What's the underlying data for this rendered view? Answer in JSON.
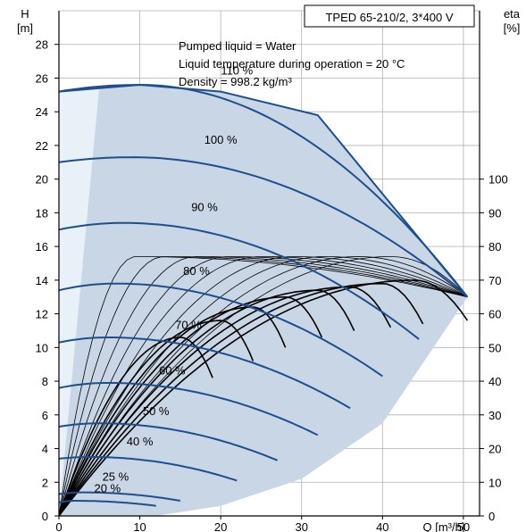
{
  "chart_data": {
    "type": "line",
    "title": "TPED 65-210/2, 3*400 V",
    "notes": [
      "Pumped liquid = Water",
      "Liquid temperature during operation = 20 °C",
      "Density = 998.2 kg/m³"
    ],
    "xlabel": "Q [m³/h]",
    "ylabel": "H",
    "ylabel_unit": "[m]",
    "y2label": "eta",
    "y2label_unit": "[%]",
    "xlim": [
      0,
      52
    ],
    "ylim": [
      0,
      30
    ],
    "y2lim": [
      0,
      150
    ],
    "x_ticks": [
      "0",
      "10",
      "20",
      "30",
      "40",
      "50"
    ],
    "y_ticks": [
      "0",
      "2",
      "4",
      "6",
      "8",
      "10",
      "12",
      "14",
      "16",
      "18",
      "20",
      "22",
      "24",
      "26",
      "28"
    ],
    "y2_ticks": [
      "0",
      "10",
      "20",
      "30",
      "40",
      "50",
      "60",
      "70",
      "80",
      "90",
      "100"
    ],
    "grid": true,
    "colors": {
      "head_curve": "#1f4e8c",
      "operating_area": "#c9d6e6",
      "light_area": "#e8f0f8",
      "efficiency": "#000000"
    },
    "speed_curves": [
      {
        "name": "110 %",
        "h0": 25.2,
        "h_peak": 25.6,
        "q_peak": 10,
        "q_end": 50.5,
        "h_end": 13
      },
      {
        "name": "100 %",
        "h0": 21.0,
        "h_peak": 21.3,
        "q_peak": 9,
        "q_end": 50.5,
        "h_end": 13
      },
      {
        "name": "90 %",
        "h0": 17.0,
        "h_peak": 17.4,
        "q_peak": 8,
        "q_end": 44.5,
        "h_end": 10.5
      },
      {
        "name": "80 %",
        "h0": 13.4,
        "h_peak": 13.8,
        "q_peak": 7,
        "q_end": 40,
        "h_end": 8.3
      },
      {
        "name": "70 %",
        "h0": 10.3,
        "h_peak": 10.6,
        "q_peak": 6,
        "q_end": 36,
        "h_end": 6.4
      },
      {
        "name": "60 %",
        "h0": 7.6,
        "h_peak": 7.9,
        "q_peak": 6,
        "q_end": 32,
        "h_end": 4.8
      },
      {
        "name": "50 %",
        "h0": 5.3,
        "h_peak": 5.5,
        "q_peak": 5,
        "q_end": 27,
        "h_end": 3.3
      },
      {
        "name": "40 %",
        "h0": 3.4,
        "h_peak": 3.5,
        "q_peak": 4,
        "q_end": 22,
        "h_end": 2.1
      },
      {
        "name": "25 %",
        "h0": 1.3,
        "h_peak": 1.4,
        "q_peak": 3,
        "q_end": 15,
        "h_end": 0.9
      },
      {
        "name": "20 %",
        "h0": 0.8,
        "h_peak": 0.9,
        "q_peak": 2,
        "q_end": 12,
        "h_end": 0.6
      }
    ],
    "max_curve": [
      [
        0,
        25.2
      ],
      [
        10,
        25.6
      ],
      [
        20,
        25.2
      ],
      [
        32,
        23.8
      ],
      [
        50.5,
        13
      ]
    ],
    "operating_area_boundary": [
      [
        5,
        25.5
      ],
      [
        10,
        25.6
      ],
      [
        20,
        25.2
      ],
      [
        32,
        23.8
      ],
      [
        50.5,
        13
      ],
      [
        40,
        5.5
      ],
      [
        30,
        2.2
      ],
      [
        20,
        0.6
      ],
      [
        12,
        0
      ],
      [
        0,
        0
      ]
    ],
    "efficiency_curves": [
      {
        "eta_peak": 77,
        "q_peak": 9.5,
        "q_end": 50.5
      },
      {
        "eta_peak": 77,
        "q_peak": 13,
        "q_end": 50.5
      },
      {
        "eta_peak": 77,
        "q_peak": 17,
        "q_end": 50.5
      },
      {
        "eta_peak": 77,
        "q_peak": 21,
        "q_end": 50.5
      },
      {
        "eta_peak": 77,
        "q_peak": 25,
        "q_end": 50.5
      },
      {
        "eta_peak": 77,
        "q_peak": 29,
        "q_end": 50.5
      },
      {
        "eta_peak": 77,
        "q_peak": 33,
        "q_end": 50.5
      },
      {
        "eta_peak": 77,
        "q_peak": 37,
        "q_end": 50.5
      },
      {
        "eta_peak": 77,
        "q_peak": 41,
        "q_end": 50.5
      },
      {
        "eta_peak": 70,
        "q_peak": 44,
        "q_end": 50.5
      },
      {
        "eta_peak": 69,
        "q_peak": 40,
        "q_end": 45
      },
      {
        "eta_peak": 68,
        "q_peak": 36,
        "q_end": 41
      },
      {
        "eta_peak": 67,
        "q_peak": 32,
        "q_end": 36.5
      },
      {
        "eta_peak": 65,
        "q_peak": 28,
        "q_end": 32.5
      },
      {
        "eta_peak": 62,
        "q_peak": 24,
        "q_end": 28
      },
      {
        "eta_peak": 58,
        "q_peak": 20,
        "q_end": 24
      },
      {
        "eta_peak": 53,
        "q_peak": 15,
        "q_end": 19
      }
    ]
  }
}
